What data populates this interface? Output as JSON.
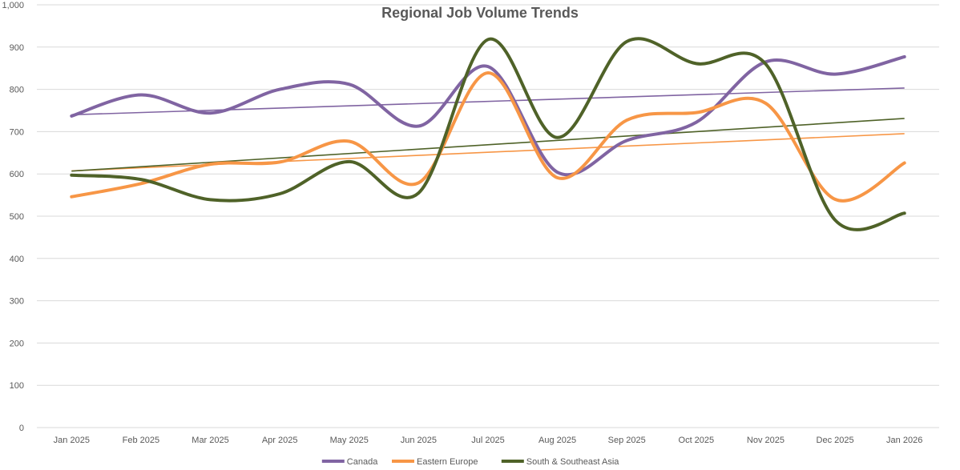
{
  "chart_data": {
    "type": "line",
    "title": "Regional Job Volume Trends",
    "xlabel": "",
    "ylabel": "",
    "ylim": [
      0,
      1000
    ],
    "yticks": [
      "0",
      "100",
      "200",
      "300",
      "400",
      "500",
      "600",
      "700",
      "800",
      "900",
      "1,000"
    ],
    "categories": [
      "Jan 2025",
      "Feb 2025",
      "Mar 2025",
      "Apr 2025",
      "May 2025",
      "Jun 2025",
      "Jul 2025",
      "Aug 2025",
      "Sep 2025",
      "Oct 2025",
      "Nov 2025",
      "Dec 2025",
      "Jan 2026"
    ],
    "grid": true,
    "smooth": true,
    "trendlines": true,
    "legend_position": "bottom",
    "series": [
      {
        "name": "Canada",
        "color": "#8064A2",
        "values": [
          737,
          787,
          744,
          800,
          812,
          713,
          854,
          604,
          679,
          722,
          865,
          836,
          877
        ]
      },
      {
        "name": "Eastern Europe",
        "color": "#F79646",
        "values": [
          546,
          577,
          623,
          628,
          677,
          579,
          839,
          591,
          727,
          745,
          767,
          540,
          626
        ]
      },
      {
        "name": "South & Southeast Asia",
        "color": "#4F6228",
        "values": [
          597,
          587,
          539,
          553,
          629,
          555,
          918,
          686,
          913,
          861,
          860,
          491,
          507
        ]
      }
    ]
  }
}
